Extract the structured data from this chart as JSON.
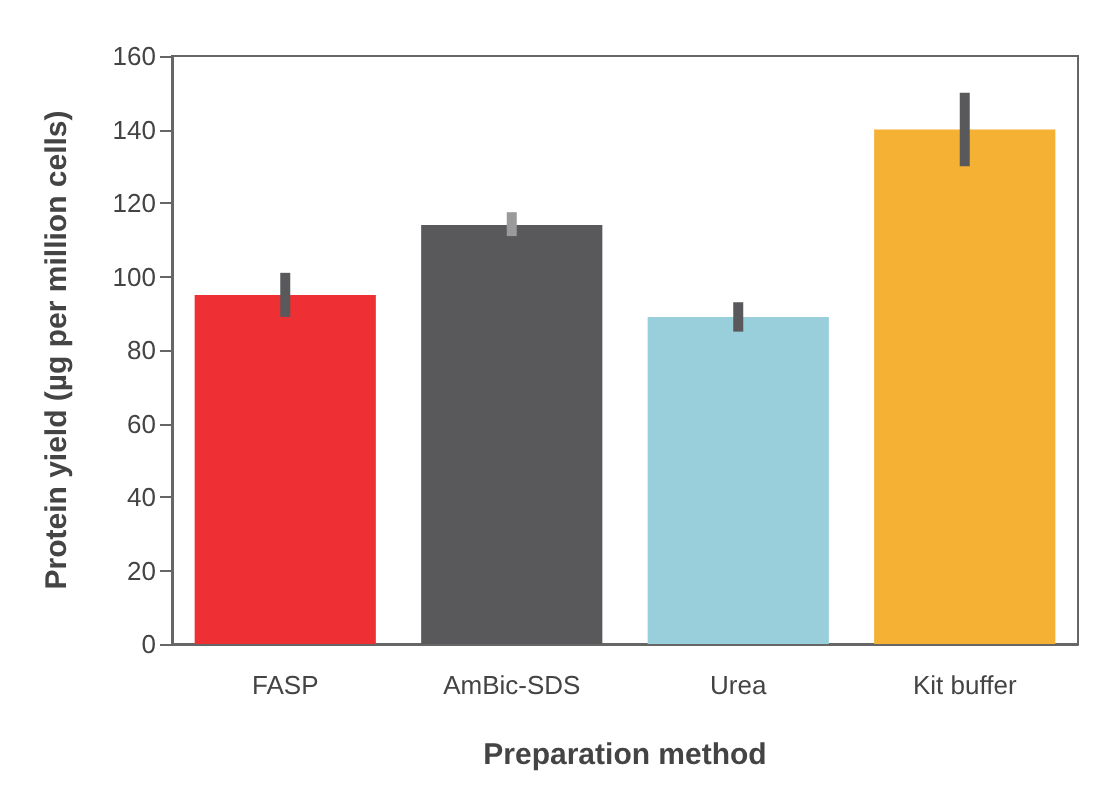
{
  "chart_data": {
    "type": "bar",
    "xlabel": "Preparation method",
    "ylabel": "Protein yield (µg per million cells)",
    "categories": [
      "FASP",
      "AmBic-SDS",
      "Urea",
      "Kit buffer"
    ],
    "values": [
      95,
      114,
      89,
      140
    ],
    "colors": [
      "#ee3035",
      "#59595b",
      "#98cfdb",
      "#f5b133"
    ],
    "errors": [
      [
        89,
        101
      ],
      [
        111,
        117.5
      ],
      [
        85,
        93
      ],
      [
        130,
        150
      ]
    ],
    "ylim": [
      0,
      160
    ],
    "yticks": [
      0,
      20,
      40,
      60,
      80,
      100,
      120,
      140,
      160
    ],
    "grid": false
  }
}
